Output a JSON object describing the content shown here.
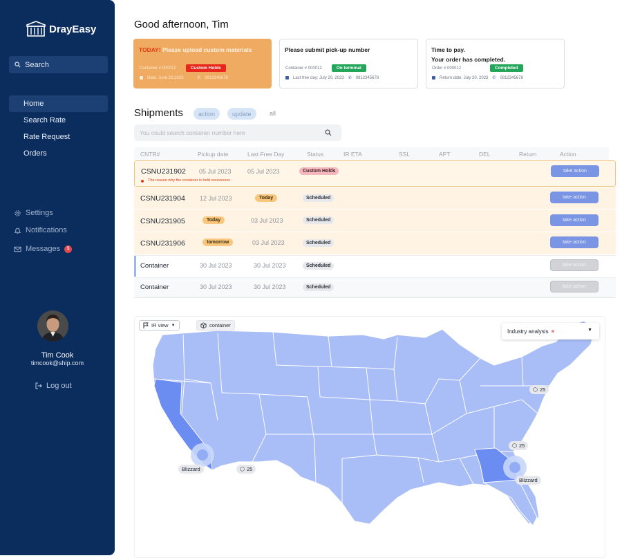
{
  "sidebar": {
    "brand": "DrayEasy",
    "search_label": "Search",
    "nav": [
      "Home",
      "Search Rate",
      "Rate Request",
      "Orders"
    ],
    "secondary": [
      {
        "label": "Settings",
        "icon": "gear-icon"
      },
      {
        "label": "Notifications",
        "icon": "bell-icon"
      },
      {
        "label": "Messages",
        "icon": "mail-icon",
        "badge": "5"
      }
    ],
    "user": {
      "name": "Tim Cook",
      "email": "timcook@ship.com"
    },
    "logout": "Log out"
  },
  "greeting": "Good afternoon, Tim",
  "cards": [
    {
      "prefix": "TODAY!",
      "title": "Please upload custom materials",
      "container": "Container # 000012",
      "chip": "Custom Holds",
      "date": "Date: June 23,2023",
      "phone": "0812345678"
    },
    {
      "title": "Please submit pick-up number",
      "container": "Container # 000012",
      "chip": "On terminal",
      "date": "Last free day: July 20, 2023",
      "phone": "0812345678"
    },
    {
      "title": "Time to pay.",
      "title2": "Your order has completed.",
      "container": "Order # 000012",
      "chip": "Completed",
      "date": "Return date: July 20, 2023",
      "phone": "0812345678"
    }
  ],
  "shipments": {
    "title": "Shipments",
    "filters": [
      "action",
      "update",
      "all"
    ],
    "search_placeholder": "You could search container number here",
    "columns": [
      "CNTR#",
      "Pickup date",
      "Last Free Day",
      "Status",
      "IR ETA",
      "SSL",
      "APT",
      "DEL",
      "Return",
      "Action"
    ],
    "rows": [
      {
        "cntr": "CSNU231902",
        "pickup": "05 Jul 2023",
        "lfd": "05 Jul 2023",
        "status": "Custom Holds",
        "action": "take action",
        "note": "The reason why the container is held xxxxxxxxxx"
      },
      {
        "cntr": "CSNU231904",
        "pickup": "12 Jul 2023",
        "lfd": "Today",
        "status": "Scheduled",
        "action": "take action"
      },
      {
        "cntr": "CSNU231905",
        "pickup": "Today",
        "lfd": "03 Jul 2023",
        "status": "Scheduled",
        "action": "take action"
      },
      {
        "cntr": "CSNU231906",
        "pickup": "tomorrow",
        "lfd": "03 Jul 2023",
        "status": "Scheduled",
        "action": "take action"
      },
      {
        "cntr": "Container",
        "pickup": "30 Jul 2023",
        "lfd": "30 Jul 2023",
        "status": "Scheduled",
        "action": "take action"
      },
      {
        "cntr": "Container",
        "pickup": "30 Jul 2023",
        "lfd": "30 Jul 2023",
        "status": "Scheduled",
        "action": "take action"
      }
    ]
  },
  "map": {
    "view_select": "IR view",
    "layer": "container",
    "analysis_select": "Industry analysis",
    "markers": [
      {
        "label": "25"
      },
      {
        "label": "25"
      },
      {
        "label": "25"
      }
    ],
    "events": [
      "Blizzard",
      "Blizzard"
    ]
  },
  "colors": {
    "sidebar": "#0b2d5e",
    "accent": "#7a95e4",
    "warning": "#f0ab63",
    "map_state": "#a9bdf7",
    "map_highlight": "#6b8cf0"
  }
}
